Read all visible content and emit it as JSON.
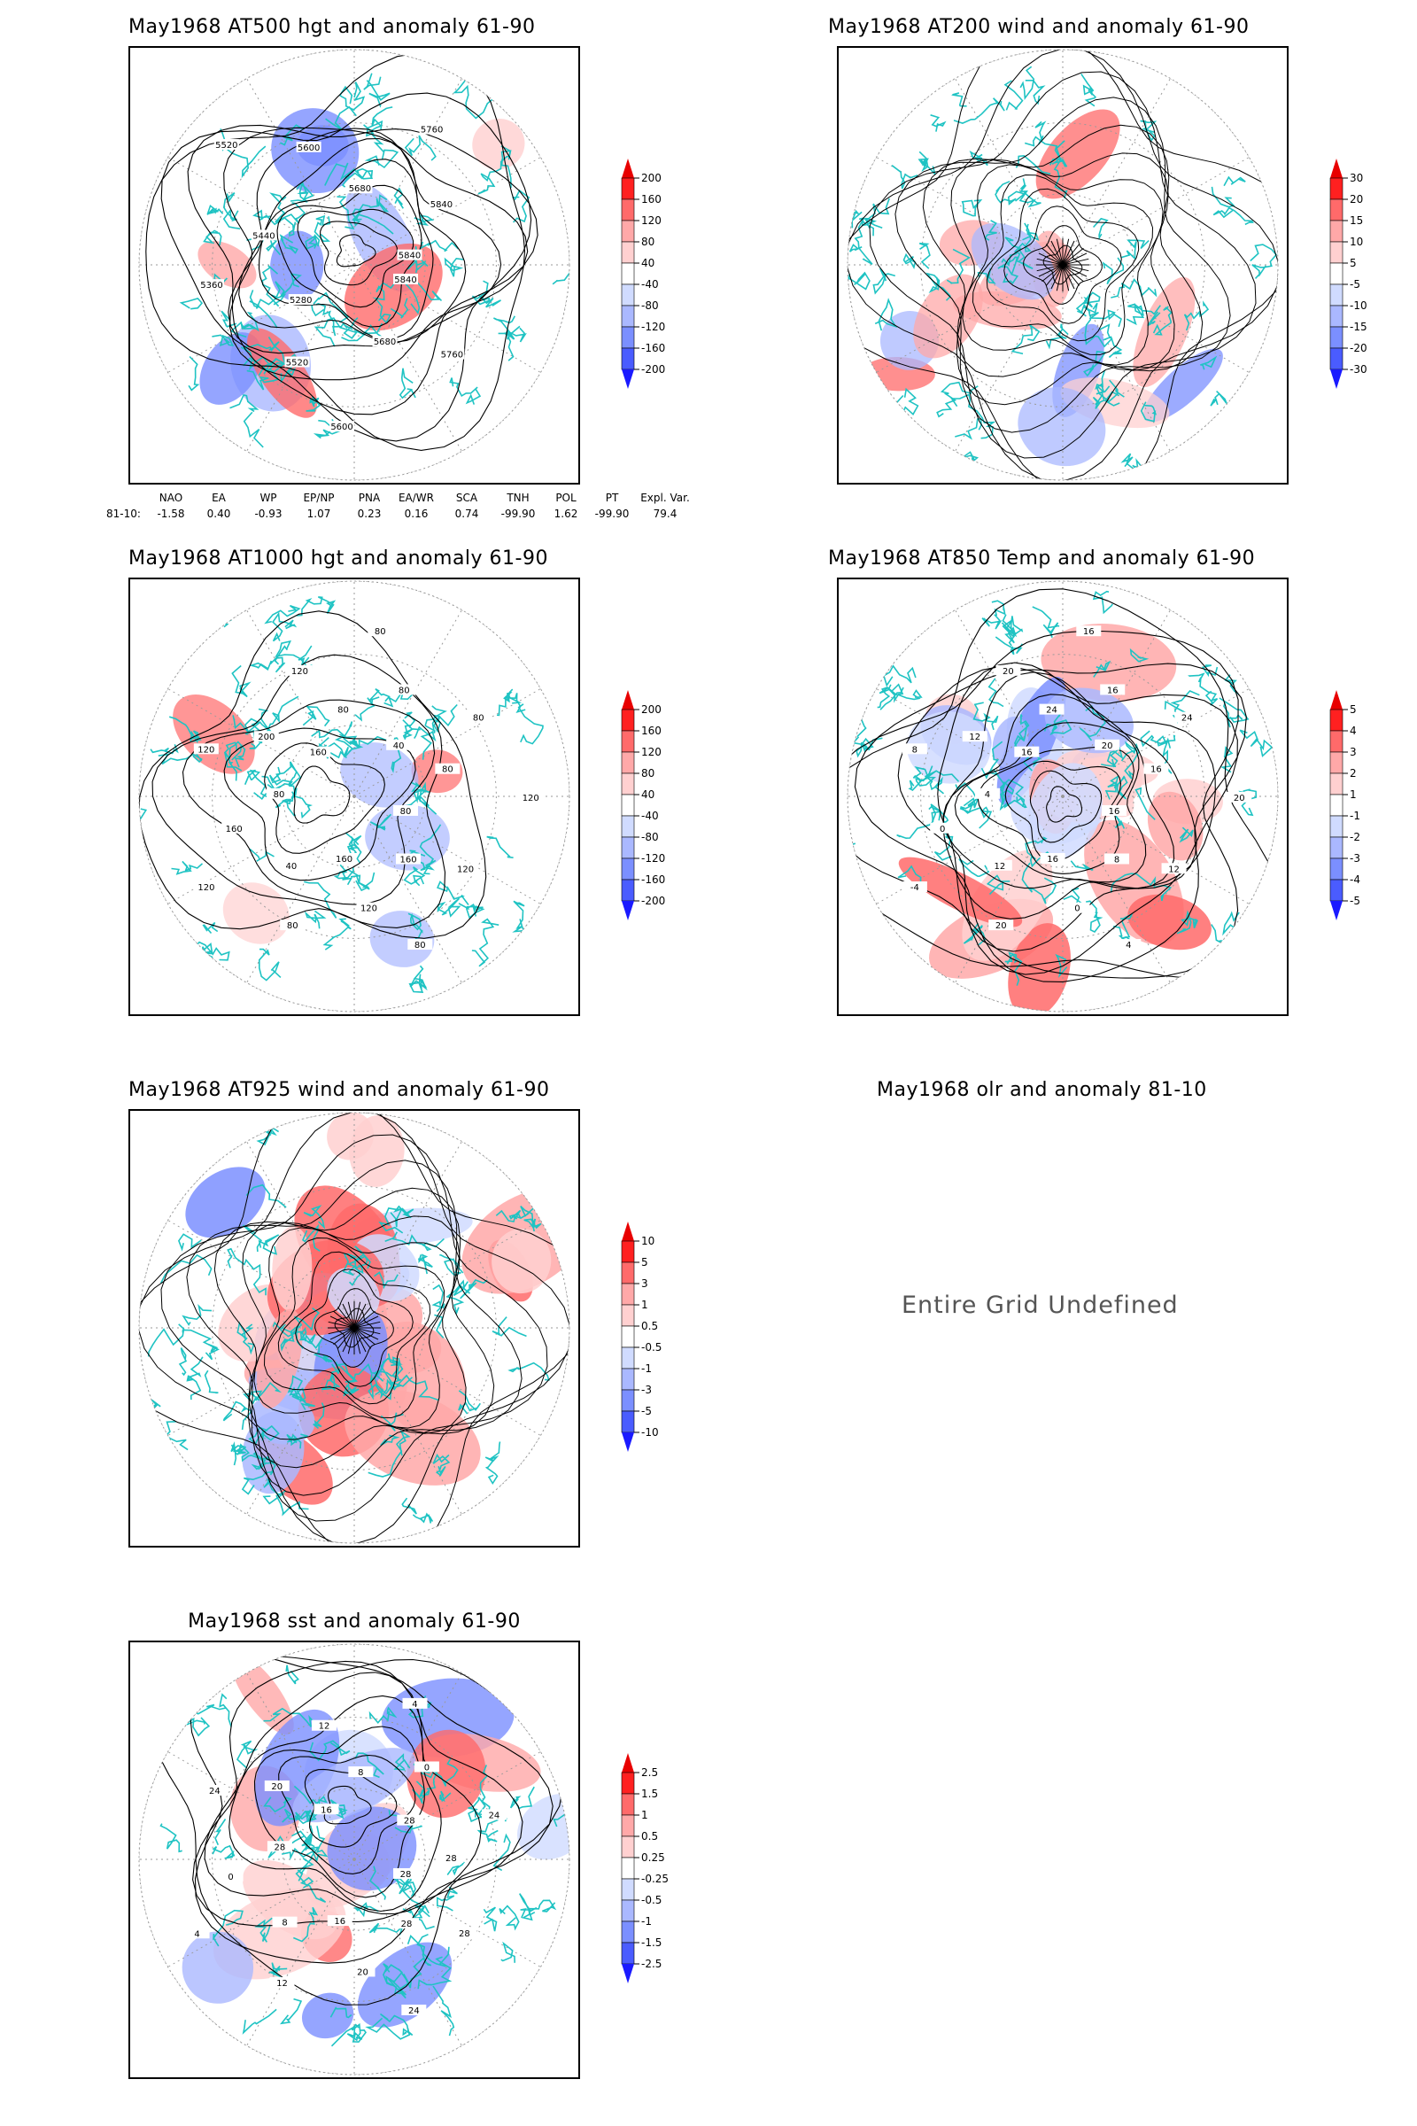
{
  "colors": {
    "coast": "#1fc3c3",
    "contour": "#000000",
    "grid": "#9a9a9a",
    "ramp": [
      "#1a1aff",
      "#4a5cff",
      "#7b8fff",
      "#aab8ff",
      "#d0dbff",
      "#ffffff",
      "#ffffff",
      "#ffd0d0",
      "#ffa8a8",
      "#ff6a6a",
      "#ff2020",
      "#e80000"
    ]
  },
  "panels": [
    {
      "id": "z500",
      "title": "May1968 AT500 hgt and anomaly 61-90",
      "colorbar": [
        "200",
        "160",
        "120",
        "80",
        "40",
        "-40",
        "-80",
        "-120",
        "-160",
        "-200"
      ],
      "contour_labels": [
        "5840",
        "5760",
        "5680",
        "5600",
        "5520",
        "5280",
        "5360",
        "5440",
        "5520",
        "5600",
        "5680",
        "5760",
        "5840",
        "5840"
      ]
    },
    {
      "id": "u200",
      "title": "May1968 AT200 wind and anomaly 61-90",
      "colorbar": [
        "30",
        "20",
        "15",
        "10",
        "5",
        "-5",
        "-10",
        "-15",
        "-20",
        "-30"
      ],
      "contour_labels": []
    },
    {
      "id": "z1000",
      "title": "May1968 AT1000 hgt and anomaly 61-90",
      "colorbar": [
        "200",
        "160",
        "120",
        "80",
        "40",
        "-40",
        "-80",
        "-120",
        "-160",
        "-200"
      ],
      "contour_labels": [
        "80",
        "120",
        "160",
        "80",
        "120",
        "160",
        "80",
        "40",
        "120",
        "160",
        "80",
        "120",
        "200",
        "160",
        "120",
        "80",
        "80",
        "80",
        "40",
        "80",
        "80",
        "120"
      ]
    },
    {
      "id": "t850",
      "title": "May1968 AT850 Temp and anomaly 61-90",
      "colorbar": [
        "5",
        "4",
        "3",
        "2",
        "1",
        "-1",
        "-2",
        "-3",
        "-4",
        "-5"
      ],
      "contour_labels": [
        "16",
        "12",
        "8",
        "4",
        "0",
        "16",
        "20",
        "12",
        "-4",
        "0",
        "4",
        "8",
        "12",
        "16",
        "20",
        "24",
        "16",
        "16",
        "20",
        "24",
        "16",
        "20"
      ]
    },
    {
      "id": "w925",
      "title": "May1968 AT925 wind and anomaly 61-90",
      "colorbar": [
        "10",
        "5",
        "3",
        "1",
        "0.5",
        "-0.5",
        "-1",
        "-3",
        "-5",
        "-10"
      ],
      "contour_labels": []
    },
    {
      "id": "olr",
      "title": "May1968 olr and anomaly 81-10",
      "undefined_text": "Entire Grid Undefined"
    },
    {
      "id": "sst",
      "title": "May1968 sst and anomaly 61-90",
      "colorbar": [
        "2.5",
        "1.5",
        "1",
        "0.5",
        "0.25",
        "-0.25",
        "-0.5",
        "-1",
        "-1.5",
        "-2.5"
      ],
      "contour_labels": [
        "28",
        "28",
        "28",
        "24",
        "20",
        "16",
        "12",
        "8",
        "4",
        "0",
        "28",
        "24",
        "20",
        "16",
        "12",
        "8",
        "4",
        "0",
        "28",
        "24",
        "28"
      ]
    }
  ],
  "teleconnection": {
    "headers": [
      "NAO",
      "EA",
      "WP",
      "EP/NP",
      "PNA",
      "EA/WR",
      "SCA",
      "TNH",
      "POL",
      "PT",
      "Expl. Var."
    ],
    "row_label": "81-10:",
    "values": [
      "-1.58",
      "0.40",
      "-0.93",
      "1.07",
      "0.23",
      "0.16",
      "0.74",
      "-99.90",
      "1.62",
      "-99.90",
      "79.4"
    ]
  }
}
